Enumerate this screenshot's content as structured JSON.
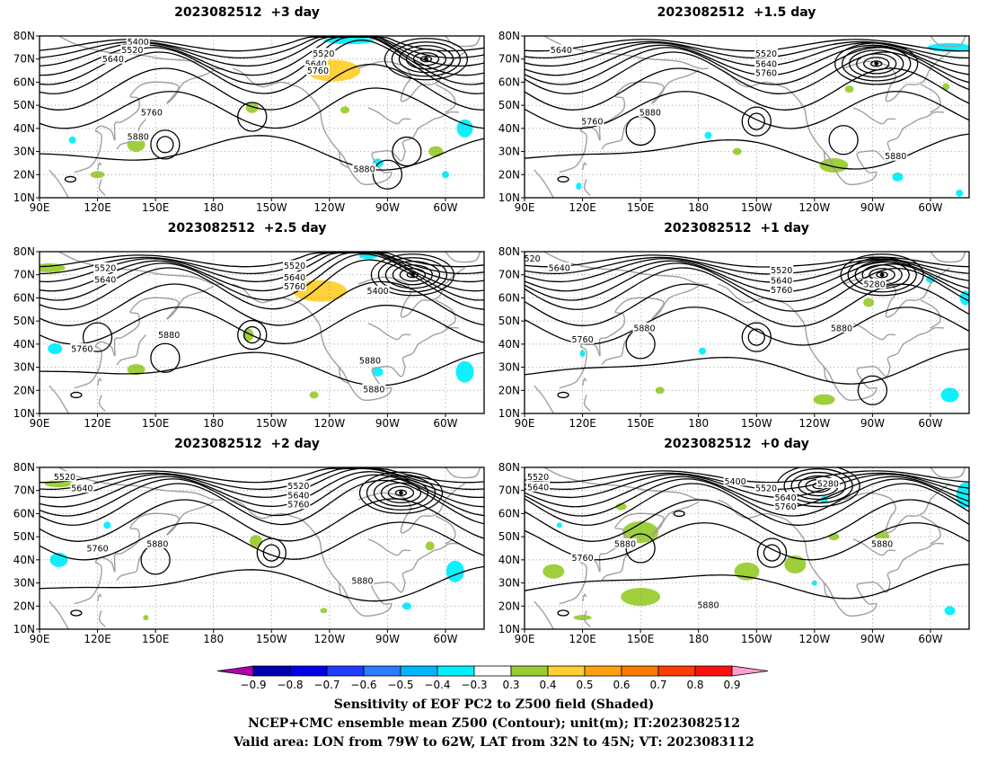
{
  "panels": [
    {
      "id": "p-plus3",
      "title": "2023082512  +3 day"
    },
    {
      "id": "p-plus1_5",
      "title": "2023082512  +1.5 day"
    },
    {
      "id": "p-plus2_5",
      "title": "2023082512  +2.5 day"
    },
    {
      "id": "p-plus1",
      "title": "2023082512  +1 day"
    },
    {
      "id": "p-plus2",
      "title": "2023082512  +2 day"
    },
    {
      "id": "p-plus0",
      "title": "2023082512  +0 day"
    }
  ],
  "map": {
    "lat_labels": [
      "80N",
      "70N",
      "60N",
      "50N",
      "40N",
      "30N",
      "20N",
      "10N"
    ],
    "lon_labels": [
      "90E",
      "120E",
      "150E",
      "180",
      "150W",
      "120W",
      "90W",
      "60W"
    ],
    "lat_values": [
      80,
      70,
      60,
      50,
      40,
      30,
      20,
      10
    ],
    "lon_values": [
      90,
      120,
      150,
      180,
      210,
      240,
      270,
      300
    ],
    "lon_range": [
      90,
      320
    ],
    "lat_range": [
      10,
      80
    ],
    "grid": "dotted"
  },
  "contour_labels": {
    "p-plus3": [
      {
        "t": "5400",
        "lon": 141,
        "lat": 77.5
      },
      {
        "t": "5520",
        "lon": 138,
        "lat": 74
      },
      {
        "t": "5640",
        "lon": 128,
        "lat": 70
      },
      {
        "t": "5520",
        "lon": 237,
        "lat": 72.5
      },
      {
        "t": "5640",
        "lon": 233,
        "lat": 68
      },
      {
        "t": "5760",
        "lon": 234,
        "lat": 65
      },
      {
        "t": "5760",
        "lon": 148,
        "lat": 47
      },
      {
        "t": "5880",
        "lon": 141,
        "lat": 36.5
      },
      {
        "t": "5880",
        "lon": 258,
        "lat": 22.5
      }
    ],
    "p-plus1_5": [
      {
        "t": "5640",
        "lon": 109,
        "lat": 74
      },
      {
        "t": "5520",
        "lon": 215,
        "lat": 72.5
      },
      {
        "t": "5640",
        "lon": 215,
        "lat": 68
      },
      {
        "t": "5760",
        "lon": 215,
        "lat": 64
      },
      {
        "t": "5760",
        "lon": 125,
        "lat": 43
      },
      {
        "t": "5880",
        "lon": 155,
        "lat": 47
      },
      {
        "t": "5880",
        "lon": 282,
        "lat": 28
      }
    ],
    "p-plus2_5": [
      {
        "t": "5520",
        "lon": 124,
        "lat": 73
      },
      {
        "t": "5640",
        "lon": 124,
        "lat": 68
      },
      {
        "t": "5520",
        "lon": 222,
        "lat": 74
      },
      {
        "t": "5640",
        "lon": 222,
        "lat": 69
      },
      {
        "t": "5760",
        "lon": 222,
        "lat": 65
      },
      {
        "t": "5400",
        "lon": 265,
        "lat": 63
      },
      {
        "t": "5760",
        "lon": 112,
        "lat": 38
      },
      {
        "t": "5880",
        "lon": 157,
        "lat": 44
      },
      {
        "t": "5880",
        "lon": 261,
        "lat": 33
      },
      {
        "t": "5880",
        "lon": 263,
        "lat": 20.5
      }
    ],
    "p-plus1": [
      {
        "t": "520",
        "lon": 94,
        "lat": 77
      },
      {
        "t": "5640",
        "lon": 108,
        "lat": 73
      },
      {
        "t": "5520",
        "lon": 223,
        "lat": 72
      },
      {
        "t": "5640",
        "lon": 223,
        "lat": 67.5
      },
      {
        "t": "5760",
        "lon": 223,
        "lat": 63.5
      },
      {
        "t": "5280",
        "lon": 271,
        "lat": 66
      },
      {
        "t": "5760",
        "lon": 120,
        "lat": 42
      },
      {
        "t": "5880",
        "lon": 152,
        "lat": 47
      },
      {
        "t": "5880",
        "lon": 254,
        "lat": 47
      }
    ],
    "p-plus2": [
      {
        "t": "5520",
        "lon": 103,
        "lat": 76
      },
      {
        "t": "5640",
        "lon": 112,
        "lat": 71
      },
      {
        "t": "5520",
        "lon": 224,
        "lat": 72
      },
      {
        "t": "5640",
        "lon": 224,
        "lat": 68
      },
      {
        "t": "5760",
        "lon": 224,
        "lat": 64
      },
      {
        "t": "5760",
        "lon": 120,
        "lat": 45
      },
      {
        "t": "5880",
        "lon": 151,
        "lat": 47
      },
      {
        "t": "5880",
        "lon": 257,
        "lat": 31
      }
    ],
    "p-plus0": [
      {
        "t": "5520",
        "lon": 97,
        "lat": 76
      },
      {
        "t": "5640",
        "lon": 97,
        "lat": 71.5
      },
      {
        "t": "5400",
        "lon": 199,
        "lat": 74
      },
      {
        "t": "5520",
        "lon": 215,
        "lat": 71
      },
      {
        "t": "5640",
        "lon": 225,
        "lat": 67
      },
      {
        "t": "5760",
        "lon": 225,
        "lat": 63
      },
      {
        "t": "5280",
        "lon": 247,
        "lat": 73
      },
      {
        "t": "5880",
        "lon": 142,
        "lat": 47
      },
      {
        "t": "5760",
        "lon": 120,
        "lat": 41
      },
      {
        "t": "5880",
        "lon": 275,
        "lat": 47
      },
      {
        "t": "5880",
        "lon": 185,
        "lat": 20.5
      }
    ]
  },
  "colorbar": {
    "labels": [
      "−0.9",
      "−0.8",
      "−0.7",
      "−0.6",
      "−0.5",
      "−0.4",
      "−0.3",
      "0.3",
      "0.4",
      "0.5",
      "0.6",
      "0.7",
      "0.8",
      "0.9"
    ],
    "colors": [
      "#0000b0",
      "#0000e8",
      "#1f3cff",
      "#2a7dff",
      "#00b6ff",
      "#00f0ff",
      "#ffffff",
      "#9acd32",
      "#ffcf2f",
      "#ffa010",
      "#ff7a00",
      "#ff3c00",
      "#ff1010"
    ],
    "end_low": "#b000b0",
    "end_high": "#ff9ecf"
  },
  "colors": {
    "contour": "#000000",
    "coast": "#a0a0a0",
    "pos1": "#9acd32",
    "pos2": "#ffcf2f",
    "pos3": "#ffa010",
    "neg1": "#00f0ff",
    "neg2": "#00b6ff"
  },
  "footer": {
    "line1": "Sensitivity of EOF PC2 to Z500 field (Shaded)",
    "line2": "NCEP+CMC ensemble mean Z500 (Contour); unit(m); IT:2023082512",
    "line3": "Valid area: LON from 79W to 62W, LAT from 32N to 45N; VT: 2023083112"
  }
}
